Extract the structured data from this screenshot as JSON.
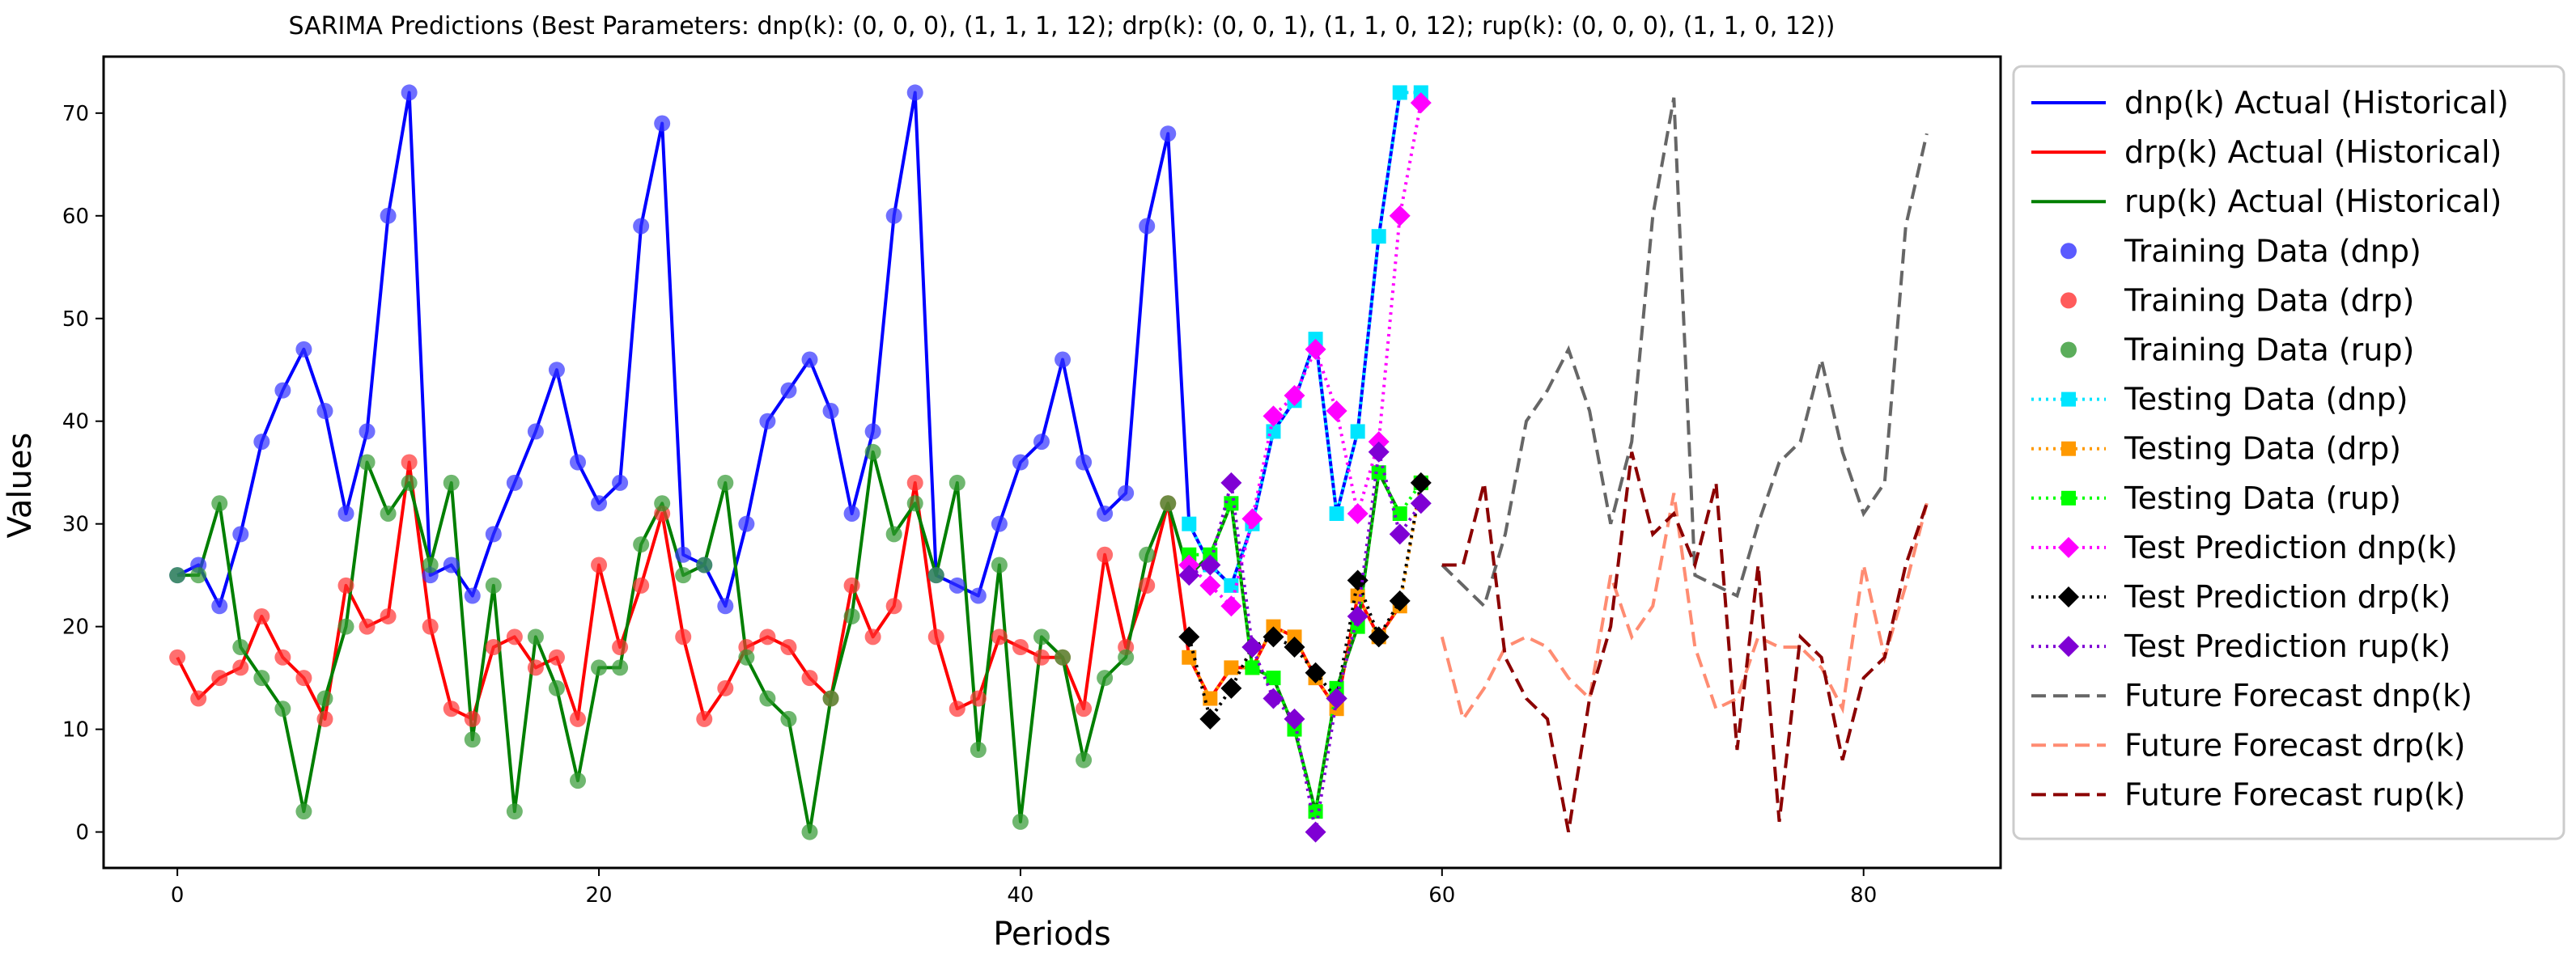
{
  "chart_data": {
    "type": "line",
    "title": "SARIMA Predictions (Best Parameters: dnp(k): (0, 0, 0), (1, 1, 1, 12); drp(k): (0, 0, 1), (1, 1, 0, 12); rup(k): (0, 0, 0), (1, 1, 0, 12))",
    "xlabel": "Periods",
    "ylabel": "Values",
    "xlim": [
      -3.5,
      86.5
    ],
    "ylim": [
      -3.5,
      75.5
    ],
    "xticks": [
      0,
      20,
      40,
      60,
      80
    ],
    "yticks": [
      0,
      10,
      20,
      30,
      40,
      50,
      60,
      70
    ],
    "legend_position": "outside-right",
    "actual": [
      {
        "name": "dnp(k) Actual (Historical)",
        "color": "#0000ff",
        "start": 0,
        "values": [
          25,
          26,
          22,
          29,
          38,
          43,
          47,
          41,
          31,
          39,
          60,
          72,
          25,
          26,
          23,
          29,
          34,
          39,
          45,
          36,
          32,
          34,
          59,
          69,
          27,
          26,
          22,
          30,
          40,
          43,
          46,
          41,
          31,
          39,
          60,
          72,
          25,
          24,
          23,
          30,
          36,
          38,
          46,
          36,
          31,
          33,
          59,
          68,
          30,
          26,
          24,
          30,
          39,
          42,
          48,
          31,
          39,
          58,
          72
        ]
      },
      {
        "name": "drp(k) Actual (Historical)",
        "color": "#ff0000",
        "start": 0,
        "values": [
          17,
          13,
          15,
          16,
          21,
          17,
          15,
          11,
          24,
          20,
          21,
          36,
          20,
          12,
          11,
          18,
          19,
          16,
          17,
          11,
          26,
          18,
          24,
          31,
          19,
          11,
          14,
          18,
          19,
          18,
          15,
          13,
          24,
          19,
          22,
          34,
          19,
          12,
          13,
          19,
          18,
          17,
          17,
          12,
          27,
          18,
          24,
          32,
          17,
          13,
          16,
          16,
          20,
          19,
          15,
          12,
          23,
          19,
          22
        ]
      },
      {
        "name": "rup(k) Actual (Historical)",
        "color": "#007f00",
        "start": 0,
        "values": [
          25,
          25,
          32,
          18,
          15,
          12,
          2,
          13,
          20,
          36,
          31,
          34,
          26,
          34,
          9,
          24,
          2,
          19,
          14,
          5,
          16,
          16,
          28,
          32,
          25,
          26,
          34,
          17,
          13,
          11,
          0,
          13,
          21,
          37,
          29,
          32,
          25,
          34,
          8,
          26,
          1,
          19,
          17,
          7,
          15,
          17,
          27,
          32,
          25,
          27,
          32,
          16,
          15,
          10,
          2,
          14,
          20,
          35,
          31
        ]
      }
    ],
    "training": [
      {
        "name": "Training Data (dnp)",
        "color": "#3232ff",
        "start": 0,
        "values": "same as dnp(k) Actual for periods 0-47"
      },
      {
        "name": "Training Data (drp)",
        "color": "#ff3232",
        "start": 0,
        "values": "same as drp(k) Actual for periods 0-47"
      },
      {
        "name": "Training Data (rup)",
        "color": "#329932",
        "start": 0,
        "values": "same as rup(k) Actual for periods 0-47"
      }
    ],
    "testing": [
      {
        "name": "Testing Data (dnp)",
        "color": "#00e5ff",
        "start": 48,
        "values": [
          30,
          26,
          24,
          30,
          39,
          42,
          48,
          31,
          39,
          58,
          72,
          72
        ]
      },
      {
        "name": "Testing Data (drp)",
        "color": "#ff9900",
        "start": 48,
        "values": [
          17,
          13,
          16,
          16,
          20,
          19,
          15,
          12,
          23,
          19,
          22,
          34
        ]
      },
      {
        "name": "Testing Data (rup)",
        "color": "#00ff00",
        "start": 48,
        "values": [
          27,
          27,
          32,
          16,
          15,
          10,
          2,
          14,
          20,
          35,
          31,
          34
        ]
      }
    ],
    "test_prediction": [
      {
        "name": "Test Prediction dnp(k)",
        "color": "#ff00ff",
        "start": 48,
        "values": [
          26,
          24,
          22,
          30.5,
          40.5,
          42.5,
          47,
          41,
          31,
          38,
          60,
          71
        ]
      },
      {
        "name": "Test Prediction drp(k)",
        "color": "#000000",
        "start": 48,
        "values": [
          19,
          11,
          14,
          18,
          19,
          18,
          15.5,
          13,
          24.5,
          19,
          22.5,
          34
        ]
      },
      {
        "name": "Test Prediction rup(k)",
        "color": "#7f00d4",
        "start": 48,
        "values": [
          25,
          26,
          34,
          18,
          13,
          11,
          0,
          13,
          21,
          37,
          29,
          32
        ]
      }
    ],
    "forecast": [
      {
        "name": "Future Forecast dnp(k)",
        "color": "#666666",
        "start": 60,
        "values": [
          26,
          24,
          22,
          29,
          40,
          43,
          47,
          41,
          30,
          38,
          60,
          71.5,
          25,
          24,
          23,
          30,
          36,
          38,
          46,
          37,
          31,
          34,
          59,
          68
        ]
      },
      {
        "name": "Future Forecast drp(k)",
        "color": "#ff8c72",
        "start": 60,
        "values": [
          19,
          11,
          14,
          18,
          19,
          18,
          15,
          13,
          25,
          19,
          22,
          33,
          18,
          12,
          13,
          19,
          18,
          18,
          16,
          12,
          26,
          17,
          24,
          32
        ]
      },
      {
        "name": "Future Forecast rup(k)",
        "color": "#8b0000",
        "start": 60,
        "values": [
          26,
          26,
          34,
          17,
          13,
          11,
          0,
          13,
          20,
          37,
          29,
          31,
          26,
          34,
          8,
          26,
          1,
          19,
          17,
          7,
          15,
          17,
          26,
          32
        ]
      }
    ]
  }
}
